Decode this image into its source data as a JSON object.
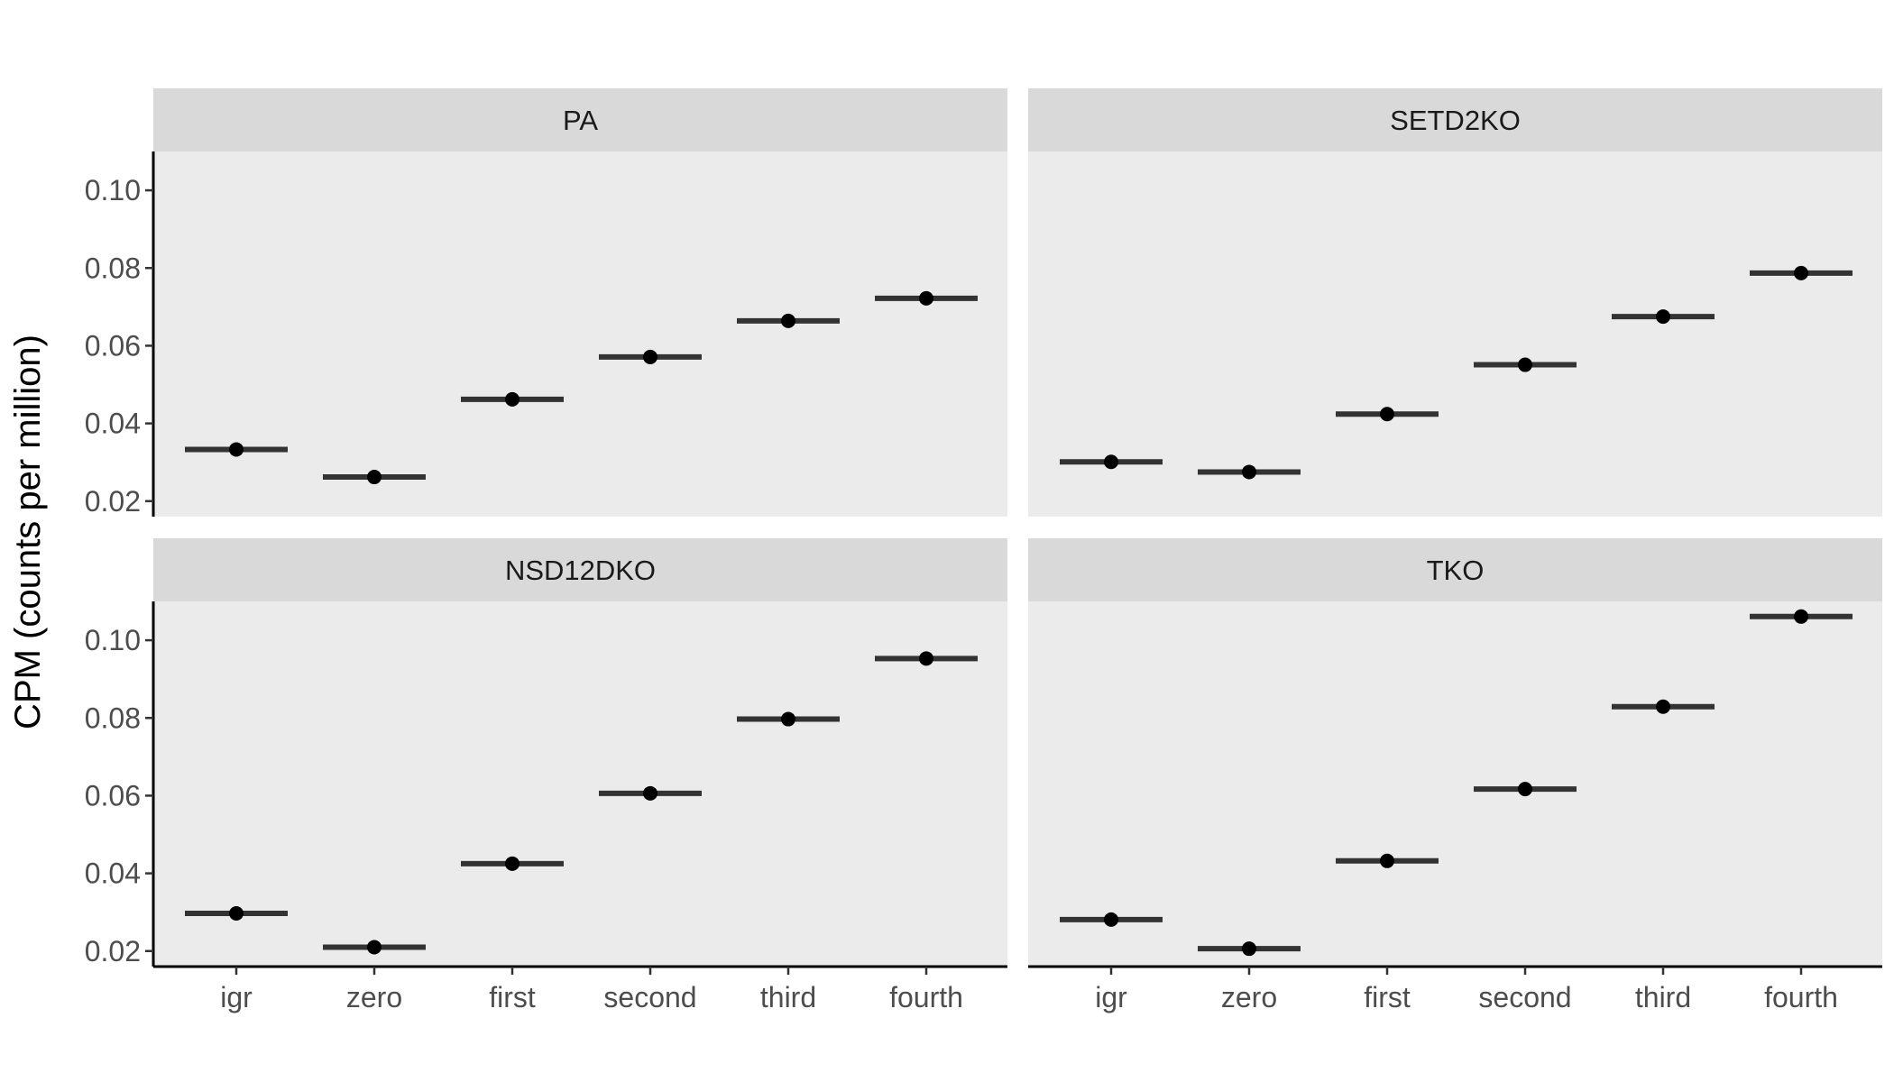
{
  "chart_data": {
    "type": "scatter",
    "ylabel": "CPM (counts per million)",
    "xlabel": "",
    "categories": [
      "igr",
      "zero",
      "first",
      "second",
      "third",
      "fourth"
    ],
    "ylim": [
      0.016,
      0.11
    ],
    "yticks": [
      "0.02",
      "0.04",
      "0.06",
      "0.08",
      "0.10"
    ],
    "facets": [
      {
        "title": "PA",
        "values": [
          0.0333,
          0.0262,
          0.0462,
          0.0571,
          0.0664,
          0.0722
        ]
      },
      {
        "title": "SETD2KO",
        "values": [
          0.0301,
          0.0275,
          0.0424,
          0.0551,
          0.0675,
          0.0787
        ]
      },
      {
        "title": "NSD12DKO",
        "values": [
          0.0297,
          0.021,
          0.0425,
          0.0606,
          0.0797,
          0.0953
        ]
      },
      {
        "title": "TKO",
        "values": [
          0.0281,
          0.0206,
          0.0432,
          0.0617,
          0.0829,
          0.1061
        ]
      }
    ]
  }
}
